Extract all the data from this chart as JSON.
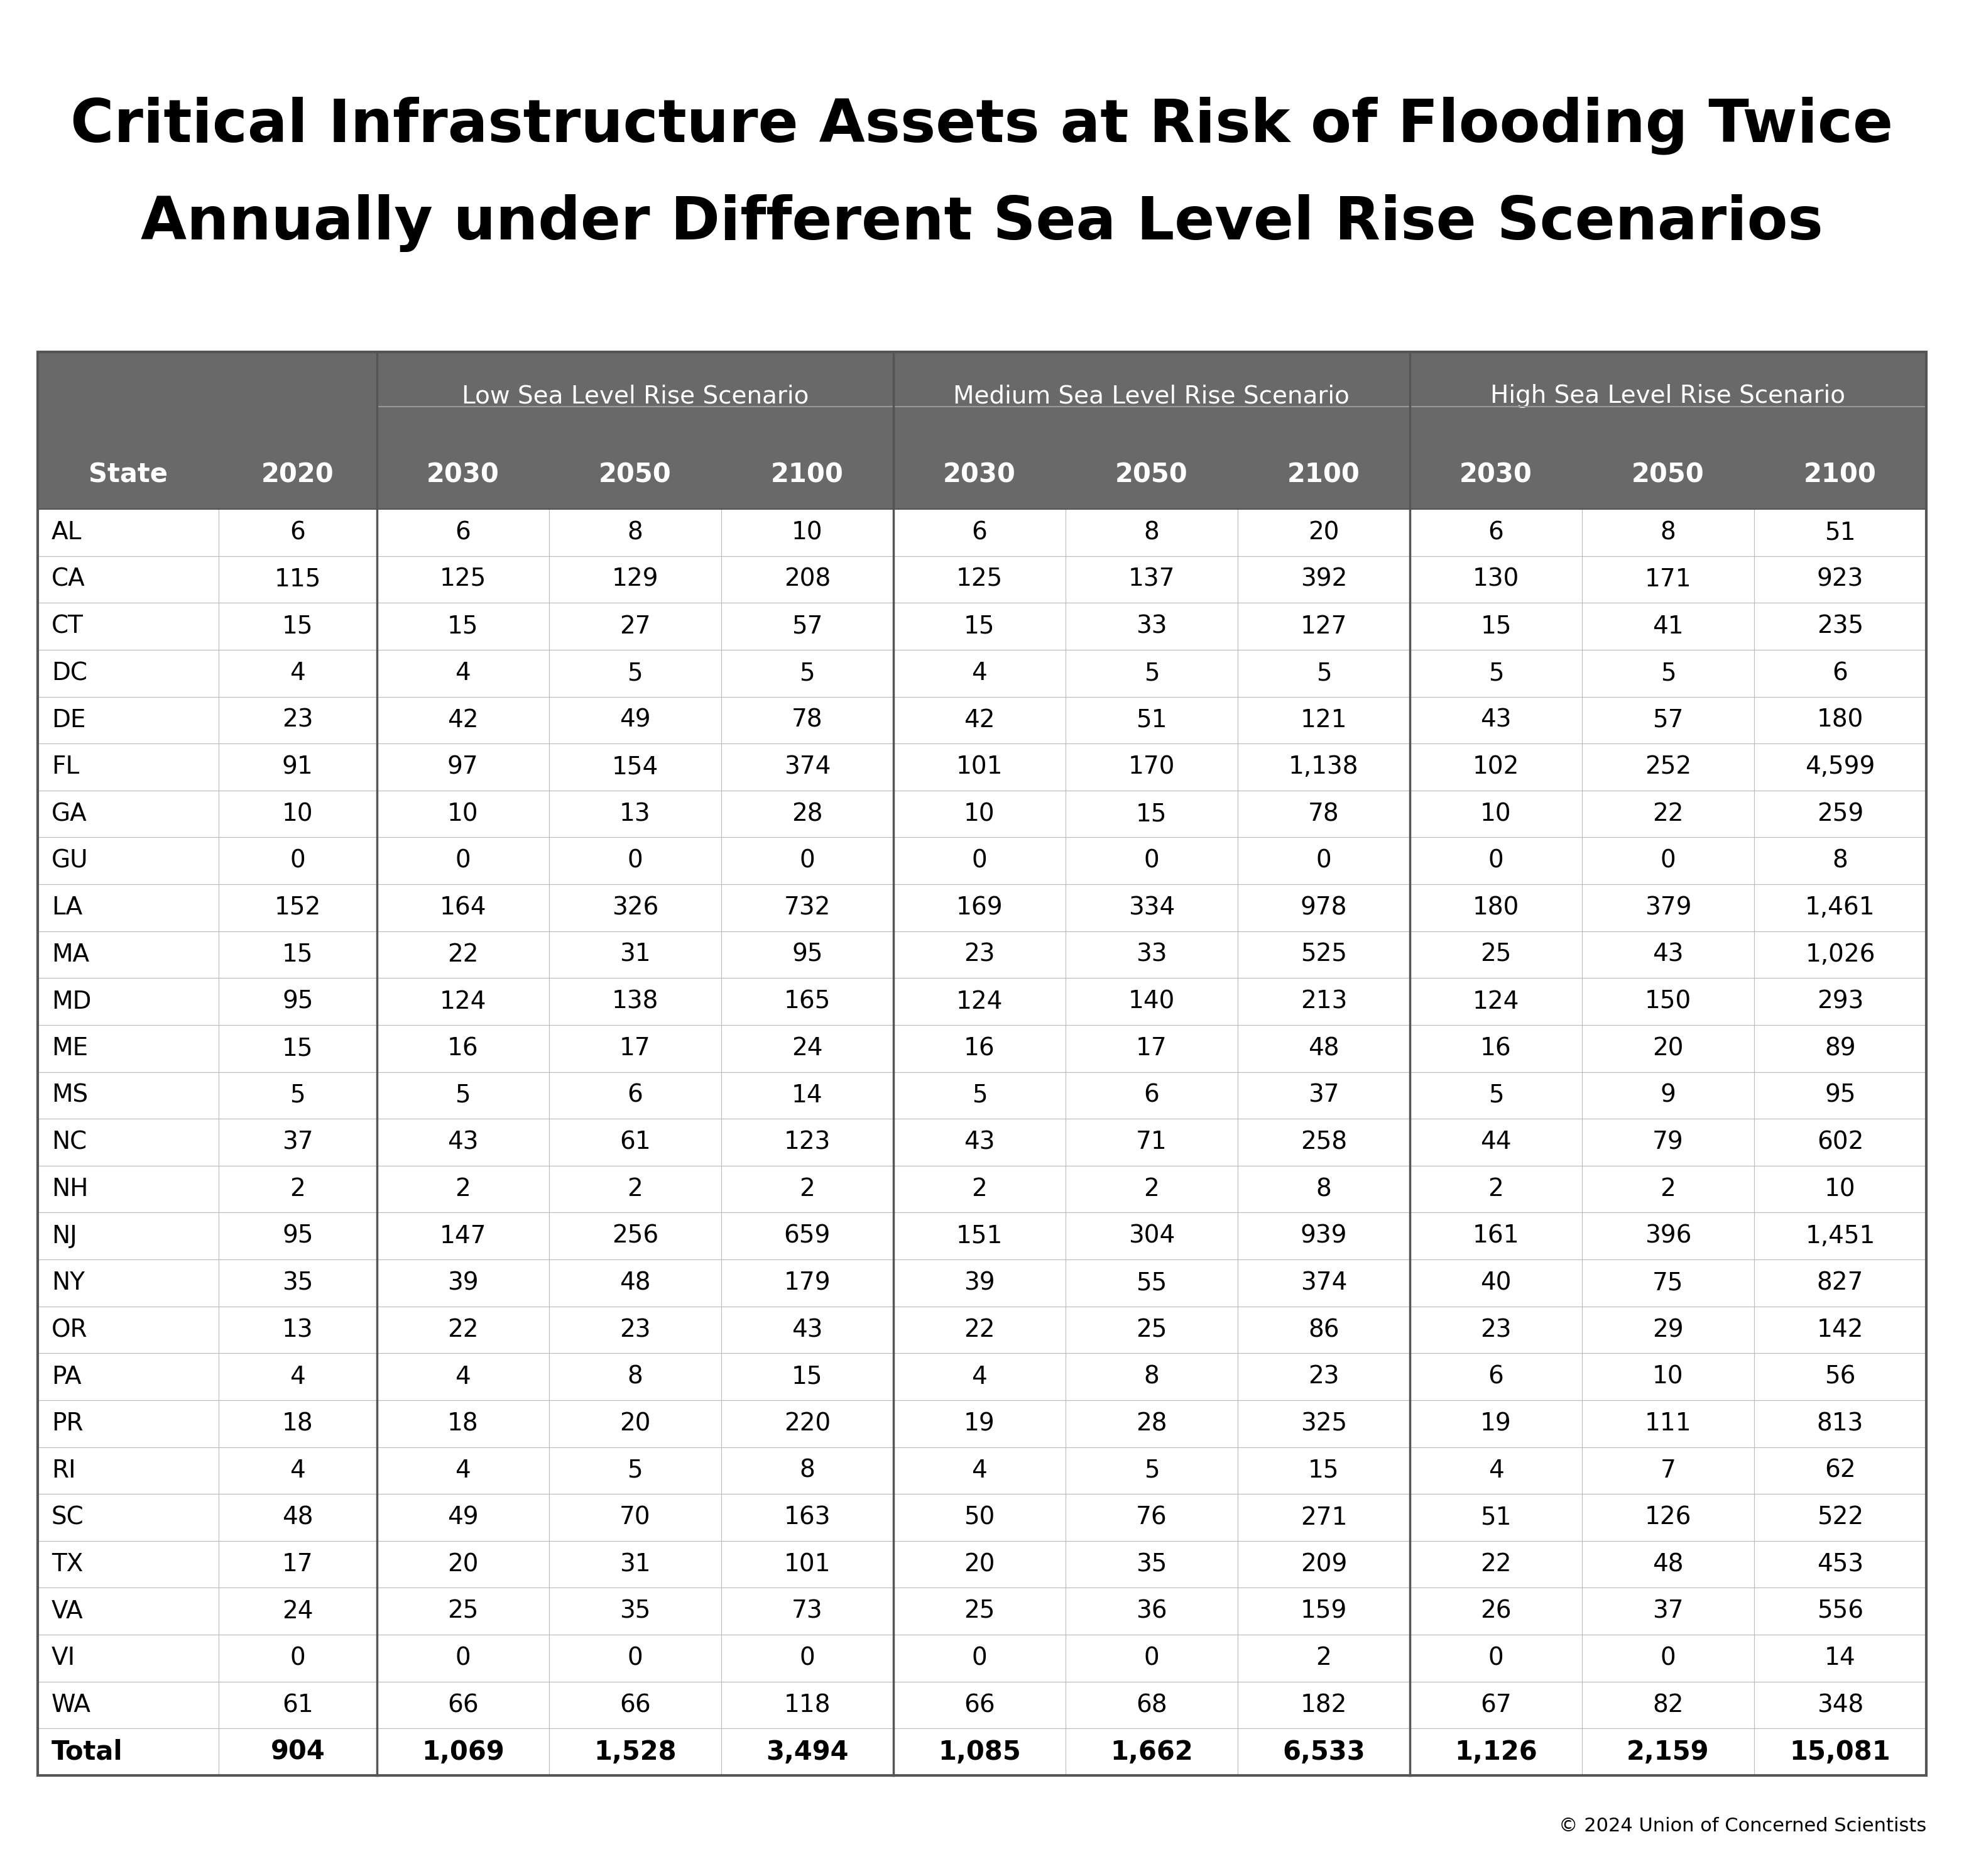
{
  "title_line1": "Critical Infrastructure Assets at Risk of Flooding Twice",
  "title_line2": "Annually under Different Sea Level Rise Scenarios",
  "copyright": "© 2024 Union of Concerned Scientists",
  "header_bg_color": "#666666",
  "header_text_color": "#ffffff",
  "grid_color": "#aaaaaa",
  "table_border_color": "#555555",
  "col_headers": [
    "State",
    "2020",
    "2030",
    "2050",
    "2100",
    "2030",
    "2050",
    "2100",
    "2030",
    "2050",
    "2100"
  ],
  "group_headers": [
    {
      "label": "",
      "span": 2
    },
    {
      "label": "Low Sea Level Rise Scenario",
      "span": 3
    },
    {
      "label": "Medium Sea Level Rise Scenario",
      "span": 3
    },
    {
      "label": "High Sea Level Rise Scenario",
      "span": 3
    }
  ],
  "rows": [
    [
      "AL",
      "6",
      "6",
      "8",
      "10",
      "6",
      "8",
      "20",
      "6",
      "8",
      "51"
    ],
    [
      "CA",
      "115",
      "125",
      "129",
      "208",
      "125",
      "137",
      "392",
      "130",
      "171",
      "923"
    ],
    [
      "CT",
      "15",
      "15",
      "27",
      "57",
      "15",
      "33",
      "127",
      "15",
      "41",
      "235"
    ],
    [
      "DC",
      "4",
      "4",
      "5",
      "5",
      "4",
      "5",
      "5",
      "5",
      "5",
      "6"
    ],
    [
      "DE",
      "23",
      "42",
      "49",
      "78",
      "42",
      "51",
      "121",
      "43",
      "57",
      "180"
    ],
    [
      "FL",
      "91",
      "97",
      "154",
      "374",
      "101",
      "170",
      "1,138",
      "102",
      "252",
      "4,599"
    ],
    [
      "GA",
      "10",
      "10",
      "13",
      "28",
      "10",
      "15",
      "78",
      "10",
      "22",
      "259"
    ],
    [
      "GU",
      "0",
      "0",
      "0",
      "0",
      "0",
      "0",
      "0",
      "0",
      "0",
      "8"
    ],
    [
      "LA",
      "152",
      "164",
      "326",
      "732",
      "169",
      "334",
      "978",
      "180",
      "379",
      "1,461"
    ],
    [
      "MA",
      "15",
      "22",
      "31",
      "95",
      "23",
      "33",
      "525",
      "25",
      "43",
      "1,026"
    ],
    [
      "MD",
      "95",
      "124",
      "138",
      "165",
      "124",
      "140",
      "213",
      "124",
      "150",
      "293"
    ],
    [
      "ME",
      "15",
      "16",
      "17",
      "24",
      "16",
      "17",
      "48",
      "16",
      "20",
      "89"
    ],
    [
      "MS",
      "5",
      "5",
      "6",
      "14",
      "5",
      "6",
      "37",
      "5",
      "9",
      "95"
    ],
    [
      "NC",
      "37",
      "43",
      "61",
      "123",
      "43",
      "71",
      "258",
      "44",
      "79",
      "602"
    ],
    [
      "NH",
      "2",
      "2",
      "2",
      "2",
      "2",
      "2",
      "8",
      "2",
      "2",
      "10"
    ],
    [
      "NJ",
      "95",
      "147",
      "256",
      "659",
      "151",
      "304",
      "939",
      "161",
      "396",
      "1,451"
    ],
    [
      "NY",
      "35",
      "39",
      "48",
      "179",
      "39",
      "55",
      "374",
      "40",
      "75",
      "827"
    ],
    [
      "OR",
      "13",
      "22",
      "23",
      "43",
      "22",
      "25",
      "86",
      "23",
      "29",
      "142"
    ],
    [
      "PA",
      "4",
      "4",
      "8",
      "15",
      "4",
      "8",
      "23",
      "6",
      "10",
      "56"
    ],
    [
      "PR",
      "18",
      "18",
      "20",
      "220",
      "19",
      "28",
      "325",
      "19",
      "111",
      "813"
    ],
    [
      "RI",
      "4",
      "4",
      "5",
      "8",
      "4",
      "5",
      "15",
      "4",
      "7",
      "62"
    ],
    [
      "SC",
      "48",
      "49",
      "70",
      "163",
      "50",
      "76",
      "271",
      "51",
      "126",
      "522"
    ],
    [
      "TX",
      "17",
      "20",
      "31",
      "101",
      "20",
      "35",
      "209",
      "22",
      "48",
      "453"
    ],
    [
      "VA",
      "24",
      "25",
      "35",
      "73",
      "25",
      "36",
      "159",
      "26",
      "37",
      "556"
    ],
    [
      "VI",
      "0",
      "0",
      "0",
      "0",
      "0",
      "0",
      "2",
      "0",
      "0",
      "14"
    ],
    [
      "WA",
      "61",
      "66",
      "66",
      "118",
      "66",
      "68",
      "182",
      "67",
      "82",
      "348"
    ]
  ],
  "total_row": [
    "Total",
    "904",
    "1,069",
    "1,528",
    "3,494",
    "1,085",
    "1,662",
    "6,533",
    "1,126",
    "2,159",
    "15,081"
  ],
  "title_fontsize": 68,
  "header_group_fontsize": 28,
  "header_col_fontsize": 30,
  "data_fontsize": 28,
  "total_fontsize": 30,
  "copyright_fontsize": 22
}
